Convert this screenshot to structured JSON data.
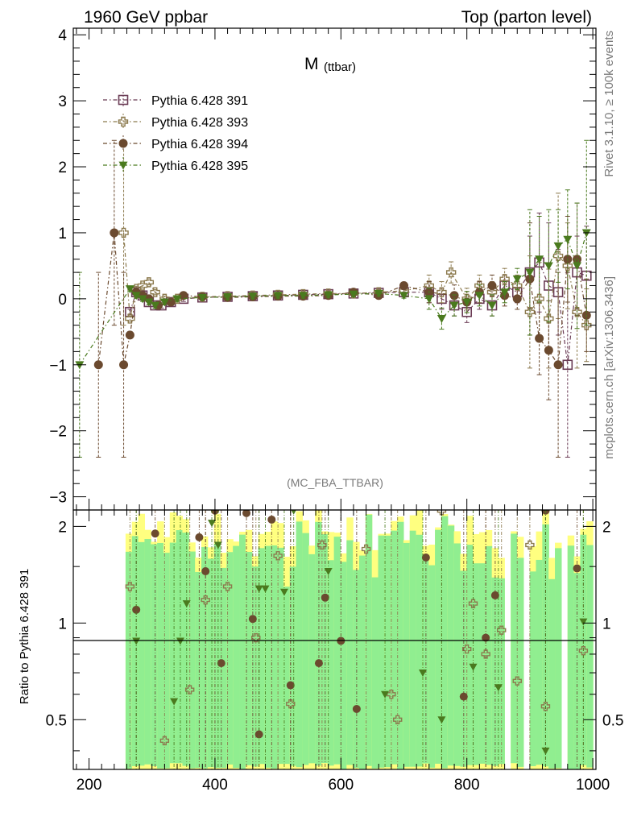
{
  "header": {
    "left": "1960 GeV ppbar",
    "right": "Top (parton level)"
  },
  "side": {
    "rivet": "Rivet 3.1.10, ≥ 100k events",
    "mcplots": "mcplots.cern.ch [arXiv:1306.3436]"
  },
  "chart_data": {
    "type": "scatter",
    "title": "M (ttbar)",
    "title_main": "M",
    "title_sub": "(ttbar)",
    "analysis_label": "(MC_FBA_TTBAR)",
    "ylabel_ratio": "Ratio to Pythia 6.428 391",
    "xlim": [
      175,
      1005
    ],
    "ylim_main": [
      -3.2,
      4.1
    ],
    "ylim_ratio": [
      0.35,
      2.25
    ],
    "xticks": [
      200,
      400,
      600,
      800,
      1000
    ],
    "yticks_main": [
      -3,
      -2,
      -1,
      0,
      1,
      2,
      3,
      4
    ],
    "yticks_ratio": [
      0.5,
      1,
      2
    ],
    "series": [
      {
        "name": "Pythia 6.428 391",
        "color": "#6b3c55",
        "marker": "open-square",
        "line": "dash-dot",
        "x": [
          265,
          275,
          285,
          295,
          305,
          315,
          330,
          350,
          380,
          420,
          460,
          500,
          540,
          580,
          620,
          660,
          700,
          740,
          760,
          780,
          800,
          820,
          840,
          860,
          880,
          900,
          915,
          930,
          945,
          960,
          975,
          990
        ],
        "y": [
          -0.2,
          0.1,
          0.05,
          -0.05,
          -0.1,
          -0.1,
          -0.05,
          0.0,
          0.02,
          0.03,
          0.04,
          0.05,
          0.06,
          0.07,
          0.08,
          0.09,
          0.1,
          0.1,
          0.0,
          -0.1,
          -0.2,
          0.0,
          -0.1,
          0.2,
          0.1,
          0.4,
          0.55,
          0.2,
          0.1,
          -1.0,
          0.4,
          0.35
        ]
      },
      {
        "name": "Pythia 6.428 393",
        "color": "#8c7a4e",
        "marker": "open-cross",
        "line": "dash-dot",
        "x": [
          255,
          265,
          275,
          285,
          295,
          305,
          320,
          340,
          380,
          420,
          460,
          500,
          540,
          580,
          620,
          660,
          700,
          740,
          760,
          775,
          800,
          820,
          840,
          860,
          880,
          900,
          915,
          930,
          945,
          960,
          975,
          990
        ],
        "y": [
          1.0,
          -0.3,
          0.15,
          0.2,
          0.25,
          0.1,
          0.0,
          0.0,
          0.03,
          0.04,
          0.05,
          0.06,
          0.07,
          0.08,
          0.08,
          0.1,
          0.12,
          0.2,
          0.1,
          0.4,
          0.0,
          0.2,
          0.1,
          0.3,
          0.2,
          -0.2,
          0.0,
          -0.3,
          0.65,
          0.5,
          -0.2,
          -0.4
        ]
      },
      {
        "name": "Pythia 6.428 394",
        "color": "#6b4a2f",
        "marker": "filled-circle",
        "line": "dash-dot",
        "x": [
          215,
          240,
          255,
          265,
          275,
          285,
          295,
          310,
          330,
          350,
          380,
          420,
          460,
          500,
          540,
          580,
          620,
          660,
          700,
          740,
          780,
          800,
          820,
          840,
          860,
          880,
          900,
          915,
          930,
          945,
          960,
          975,
          990
        ],
        "y": [
          -1.0,
          1.0,
          -1.0,
          -0.55,
          0.1,
          0.05,
          0.0,
          -0.1,
          -0.05,
          0.05,
          0.03,
          0.02,
          0.03,
          0.04,
          0.04,
          0.05,
          0.1,
          0.05,
          0.2,
          0.1,
          0.05,
          -0.05,
          0.1,
          0.2,
          0.05,
          0.0,
          0.3,
          -0.6,
          -0.78,
          -1.0,
          0.6,
          0.6,
          -0.25
        ]
      },
      {
        "name": "Pythia 6.428 395",
        "color": "#4a7a1e",
        "marker": "filled-triangle-down",
        "line": "dash-dot",
        "x": [
          185,
          265,
          275,
          285,
          295,
          305,
          320,
          340,
          380,
          420,
          460,
          500,
          540,
          580,
          620,
          660,
          700,
          740,
          760,
          780,
          800,
          820,
          840,
          860,
          880,
          900,
          915,
          930,
          945,
          960,
          975,
          990
        ],
        "y": [
          -1.0,
          0.15,
          0.05,
          0.0,
          -0.05,
          -0.1,
          -0.05,
          0.0,
          0.02,
          0.03,
          0.04,
          0.05,
          0.05,
          0.06,
          0.07,
          0.08,
          0.05,
          0.0,
          -0.3,
          -0.1,
          -0.05,
          0.05,
          -0.1,
          0.1,
          0.3,
          0.4,
          0.6,
          0.5,
          0.8,
          0.9,
          0.5,
          1.0
        ]
      }
    ],
    "ratio_series": [
      {
        "name": "Pythia 6.428 393",
        "x": [
          265,
          320,
          360,
          385,
          420,
          465,
          500,
          520,
          570,
          640,
          680,
          690,
          760,
          800,
          810,
          830,
          855,
          880,
          900,
          925,
          985
        ],
        "y": [
          1.3,
          0.43,
          0.62,
          1.18,
          1.3,
          0.9,
          1.62,
          0.56,
          1.75,
          1.7,
          0.6,
          0.5,
          2.3,
          0.83,
          1.15,
          0.8,
          0.95,
          0.66,
          1.75,
          0.55,
          0.82
        ]
      },
      {
        "name": "Pythia 6.428 394",
        "x": [
          275,
          305,
          375,
          385,
          400,
          410,
          450,
          460,
          470,
          490,
          520,
          565,
          575,
          600,
          625,
          735,
          795,
          830,
          845,
          925,
          975
        ],
        "y": [
          1.1,
          1.9,
          1.85,
          1.45,
          2.25,
          0.75,
          2.2,
          1.03,
          0.45,
          2.1,
          0.64,
          0.75,
          1.2,
          0.88,
          0.54,
          1.6,
          0.59,
          0.9,
          1.22,
          2.25,
          1.48
        ]
      },
      {
        "name": "Pythia 6.428 395",
        "x": [
          275,
          335,
          345,
          355,
          395,
          405,
          470,
          480,
          510,
          525,
          580,
          670,
          730,
          760,
          810,
          850,
          925,
          985
        ],
        "y": [
          0.88,
          0.57,
          0.88,
          1.15,
          2.05,
          1.75,
          1.28,
          1.28,
          1.25,
          2.3,
          1.45,
          0.6,
          0.7,
          0.5,
          0.73,
          0.63,
          0.4,
          1.01
        ]
      }
    ],
    "bands": {
      "green": "#90ee90",
      "yellow": "#ffff80"
    }
  }
}
